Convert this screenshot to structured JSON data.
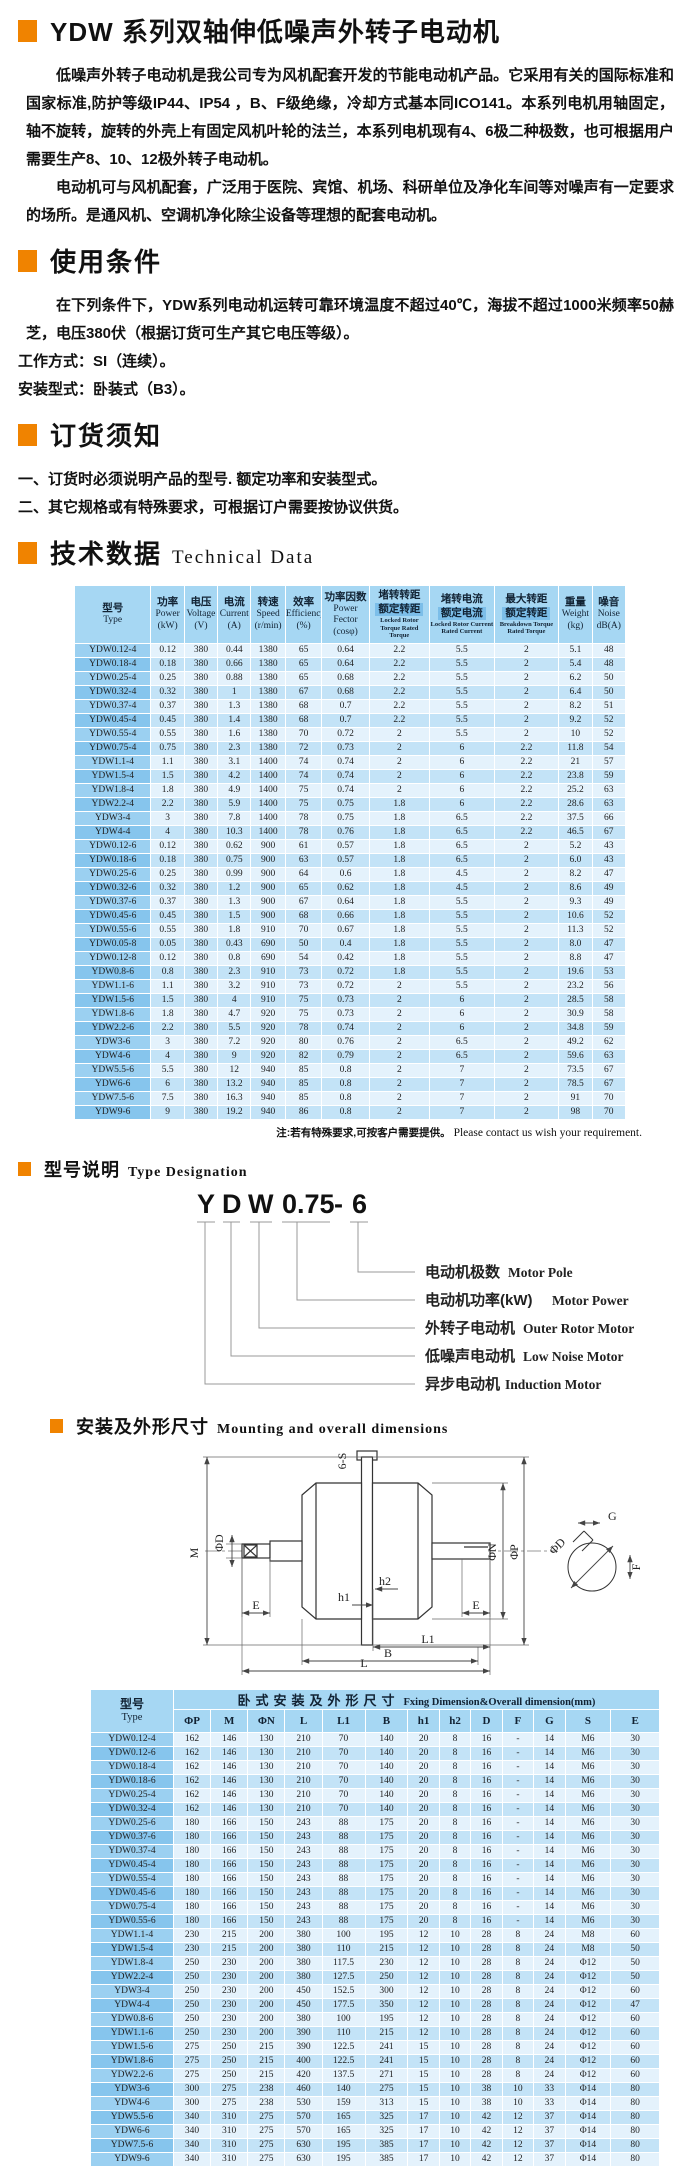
{
  "colors": {
    "accent_orange": "#F08300",
    "table_header_blue": "#A6D7F3",
    "type_column_blue": "#8FC9EE",
    "row_light_blue": "#E4F2FC",
    "row_medium_blue": "#C3E3F7",
    "highlight_chip_blue": "#7CBEE9"
  },
  "page": {
    "title": "YDW 系列双轴伸低噪声外转子电动机",
    "intro_p1": "低噪声外转子电动机是我公司专为风机配套开发的节能电动机产品。它采用有关的国际标准和国家标准,防护等级IP44、IP54 ，B、F级绝缘，冷却方式基本同ICO141。本系列电机用轴固定，轴不旋转，旋转的外壳上有固定风机叶轮的法兰，本系列电机现有4、6极二种极数，也可根据用户需要生产8、10、12极外转子电动机。",
    "intro_p2": "电动机可与风机配套，广泛用于医院、宾馆、机场、科研单位及净化车间等对噪声有一定要求的场所。是通风机、空调机净化除尘设备等理想的配套电动机。"
  },
  "sections": {
    "usage": {
      "heading": "使用条件",
      "p1": "在下列条件下，YDW系列电动机运转可靠环境温度不超过40℃，海拔不超过1000米频率50赫芝，电压380伏（根据订货可生产其它电压等级）。",
      "line2": "工作方式：SI（连续）。",
      "line3": "安装型式：卧装式（B3）。"
    },
    "ordering": {
      "heading": "订货须知",
      "item1": "一、订货时必须说明产品的型号. 额定功率和安装型式。",
      "item2": "二、其它规格或有特殊要求，可根据订户需要按协议供货。"
    },
    "technical": {
      "heading_cn": "技术数据",
      "heading_en": "Technical Data",
      "note_cn": "注:若有特殊要求,可按客户需要提供。",
      "note_en": "Please contact us wish your requirement."
    },
    "designation": {
      "heading_cn": "型号说明",
      "heading_en": "Type Designation",
      "code_parts": [
        "Y",
        "D",
        "W",
        "0.75",
        "-",
        "6"
      ],
      "labels": [
        {
          "cn": "电动机极数",
          "en": "Motor Pole"
        },
        {
          "cn": "电动机功率(kW)",
          "en": "Motor  Power"
        },
        {
          "cn": "外转子电动机",
          "en": "Outer Rotor Motor"
        },
        {
          "cn": "低噪声电动机",
          "en": "Low Noise Motor"
        },
        {
          "cn": "异步电动机",
          "en": "Induction Motor"
        }
      ]
    },
    "mounting": {
      "heading_cn": "安装及外形尺寸",
      "heading_en": "Mounting and overall dimensions",
      "drawing_labels": {
        "s6": "6-S",
        "m": "M",
        "phi_d": "ΦD",
        "e": "E",
        "phi_n": "ΦN",
        "phi_p": "ΦP",
        "g": "G",
        "f": "F",
        "h1": "h1",
        "h2": "h2",
        "l1": "L1",
        "b": "B",
        "l": "L"
      }
    }
  },
  "tech_table": {
    "headers": [
      {
        "cn": "型号",
        "en": "Type"
      },
      {
        "cn": "功率",
        "en": "Power",
        "unit": "(kW)"
      },
      {
        "cn": "电压",
        "en": "Voltage",
        "unit": "(V)"
      },
      {
        "cn": "电流",
        "en": "Current",
        "unit": "(A)"
      },
      {
        "cn": "转速",
        "en": "Speed",
        "unit": "(r/min)"
      },
      {
        "cn": "效率",
        "en": "Efficiency",
        "unit": "(%)"
      },
      {
        "cn": "功率因数",
        "en": "Power Fector",
        "unit": "(cosφ)"
      },
      {
        "cn": "堵转转距",
        "cn2": "额定转距",
        "small": "Locked Rotor Torque Rated Torque"
      },
      {
        "cn": "堵转电流",
        "cn2": "额定电流",
        "small": "Locked Rotor Current Rated Current"
      },
      {
        "cn": "最大转距",
        "cn2": "额定转距",
        "small": "Breakdown Torque Rated Torque"
      },
      {
        "cn": "重量",
        "en": "Weight",
        "unit": "(kg)"
      },
      {
        "cn": "噪音",
        "en": "Noise",
        "unit": "dB(A)"
      }
    ],
    "rows": [
      [
        "YDW0.12-4",
        "0.12",
        "380",
        "0.44",
        "1380",
        "65",
        "0.64",
        "2.2",
        "5.5",
        "2",
        "5.1",
        "48"
      ],
      [
        "YDW0.18-4",
        "0.18",
        "380",
        "0.66",
        "1380",
        "65",
        "0.64",
        "2.2",
        "5.5",
        "2",
        "5.4",
        "48"
      ],
      [
        "YDW0.25-4",
        "0.25",
        "380",
        "0.88",
        "1380",
        "65",
        "0.68",
        "2.2",
        "5.5",
        "2",
        "6.2",
        "50"
      ],
      [
        "YDW0.32-4",
        "0.32",
        "380",
        "1",
        "1380",
        "67",
        "0.68",
        "2.2",
        "5.5",
        "2",
        "6.4",
        "50"
      ],
      [
        "YDW0.37-4",
        "0.37",
        "380",
        "1.3",
        "1380",
        "68",
        "0.7",
        "2.2",
        "5.5",
        "2",
        "8.2",
        "51"
      ],
      [
        "YDW0.45-4",
        "0.45",
        "380",
        "1.4",
        "1380",
        "68",
        "0.7",
        "2.2",
        "5.5",
        "2",
        "9.2",
        "52"
      ],
      [
        "YDW0.55-4",
        "0.55",
        "380",
        "1.6",
        "1380",
        "70",
        "0.72",
        "2",
        "5.5",
        "2",
        "10",
        "52"
      ],
      [
        "YDW0.75-4",
        "0.75",
        "380",
        "2.3",
        "1380",
        "72",
        "0.73",
        "2",
        "6",
        "2.2",
        "11.8",
        "54"
      ],
      [
        "YDW1.1-4",
        "1.1",
        "380",
        "3.1",
        "1400",
        "74",
        "0.74",
        "2",
        "6",
        "2.2",
        "21",
        "57"
      ],
      [
        "YDW1.5-4",
        "1.5",
        "380",
        "4.2",
        "1400",
        "74",
        "0.74",
        "2",
        "6",
        "2.2",
        "23.8",
        "59"
      ],
      [
        "YDW1.8-4",
        "1.8",
        "380",
        "4.9",
        "1400",
        "75",
        "0.74",
        "2",
        "6",
        "2.2",
        "25.2",
        "63"
      ],
      [
        "YDW2.2-4",
        "2.2",
        "380",
        "5.9",
        "1400",
        "75",
        "0.75",
        "1.8",
        "6",
        "2.2",
        "28.6",
        "63"
      ],
      [
        "YDW3-4",
        "3",
        "380",
        "7.8",
        "1400",
        "78",
        "0.75",
        "1.8",
        "6.5",
        "2.2",
        "37.5",
        "66"
      ],
      [
        "YDW4-4",
        "4",
        "380",
        "10.3",
        "1400",
        "78",
        "0.76",
        "1.8",
        "6.5",
        "2.2",
        "46.5",
        "67"
      ],
      [
        "YDW0.12-6",
        "0.12",
        "380",
        "0.62",
        "900",
        "61",
        "0.57",
        "1.8",
        "6.5",
        "2",
        "5.2",
        "43"
      ],
      [
        "YDW0.18-6",
        "0.18",
        "380",
        "0.75",
        "900",
        "63",
        "0.57",
        "1.8",
        "6.5",
        "2",
        "6.0",
        "43"
      ],
      [
        "YDW0.25-6",
        "0.25",
        "380",
        "0.99",
        "900",
        "64",
        "0.6",
        "1.8",
        "4.5",
        "2",
        "8.2",
        "47"
      ],
      [
        "YDW0.32-6",
        "0.32",
        "380",
        "1.2",
        "900",
        "65",
        "0.62",
        "1.8",
        "4.5",
        "2",
        "8.6",
        "49"
      ],
      [
        "YDW0.37-6",
        "0.37",
        "380",
        "1.3",
        "900",
        "67",
        "0.64",
        "1.8",
        "5.5",
        "2",
        "9.3",
        "49"
      ],
      [
        "YDW0.45-6",
        "0.45",
        "380",
        "1.5",
        "900",
        "68",
        "0.66",
        "1.8",
        "5.5",
        "2",
        "10.6",
        "52"
      ],
      [
        "YDW0.55-6",
        "0.55",
        "380",
        "1.8",
        "910",
        "70",
        "0.67",
        "1.8",
        "5.5",
        "2",
        "11.3",
        "52"
      ],
      [
        "YDW0.05-8",
        "0.05",
        "380",
        "0.43",
        "690",
        "50",
        "0.4",
        "1.8",
        "5.5",
        "2",
        "8.0",
        "47"
      ],
      [
        "YDW0.12-8",
        "0.12",
        "380",
        "0.8",
        "690",
        "54",
        "0.42",
        "1.8",
        "5.5",
        "2",
        "8.8",
        "47"
      ],
      [
        "YDW0.8-6",
        "0.8",
        "380",
        "2.3",
        "910",
        "73",
        "0.72",
        "1.8",
        "5.5",
        "2",
        "19.6",
        "53"
      ],
      [
        "YDW1.1-6",
        "1.1",
        "380",
        "3.2",
        "910",
        "73",
        "0.72",
        "2",
        "5.5",
        "2",
        "23.2",
        "56"
      ],
      [
        "YDW1.5-6",
        "1.5",
        "380",
        "4",
        "910",
        "75",
        "0.73",
        "2",
        "6",
        "2",
        "28.5",
        "58"
      ],
      [
        "YDW1.8-6",
        "1.8",
        "380",
        "4.7",
        "920",
        "75",
        "0.73",
        "2",
        "6",
        "2",
        "30.9",
        "58"
      ],
      [
        "YDW2.2-6",
        "2.2",
        "380",
        "5.5",
        "920",
        "78",
        "0.74",
        "2",
        "6",
        "2",
        "34.8",
        "59"
      ],
      [
        "YDW3-6",
        "3",
        "380",
        "7.2",
        "920",
        "80",
        "0.76",
        "2",
        "6.5",
        "2",
        "49.2",
        "62"
      ],
      [
        "YDW4-6",
        "4",
        "380",
        "9",
        "920",
        "82",
        "0.79",
        "2",
        "6.5",
        "2",
        "59.6",
        "63"
      ],
      [
        "YDW5.5-6",
        "5.5",
        "380",
        "12",
        "940",
        "85",
        "0.8",
        "2",
        "7",
        "2",
        "73.5",
        "67"
      ],
      [
        "YDW6-6",
        "6",
        "380",
        "13.2",
        "940",
        "85",
        "0.8",
        "2",
        "7",
        "2",
        "78.5",
        "67"
      ],
      [
        "YDW7.5-6",
        "7.5",
        "380",
        "16.3",
        "940",
        "85",
        "0.8",
        "2",
        "7",
        "2",
        "91",
        "70"
      ],
      [
        "YDW9-6",
        "9",
        "380",
        "19.2",
        "940",
        "86",
        "0.8",
        "2",
        "7",
        "2",
        "98",
        "70"
      ]
    ]
  },
  "dim_table": {
    "type_cn": "型号",
    "type_en": "Type",
    "title_cn": "卧式安装及外形尺寸",
    "title_en": "Fxing Dimension&Overall dimension(mm)",
    "col_headers": [
      "ΦP",
      "M",
      "ΦN",
      "L",
      "L1",
      "B",
      "h1",
      "h2",
      "D",
      "F",
      "G",
      "S",
      "E"
    ],
    "rows": [
      [
        "YDW0.12-4",
        "162",
        "146",
        "130",
        "210",
        "70",
        "140",
        "20",
        "8",
        "16",
        "-",
        "14",
        "M6",
        "30"
      ],
      [
        "YDW0.12-6",
        "162",
        "146",
        "130",
        "210",
        "70",
        "140",
        "20",
        "8",
        "16",
        "-",
        "14",
        "M6",
        "30"
      ],
      [
        "YDW0.18-4",
        "162",
        "146",
        "130",
        "210",
        "70",
        "140",
        "20",
        "8",
        "16",
        "-",
        "14",
        "M6",
        "30"
      ],
      [
        "YDW0.18-6",
        "162",
        "146",
        "130",
        "210",
        "70",
        "140",
        "20",
        "8",
        "16",
        "-",
        "14",
        "M6",
        "30"
      ],
      [
        "YDW0.25-4",
        "162",
        "146",
        "130",
        "210",
        "70",
        "140",
        "20",
        "8",
        "16",
        "-",
        "14",
        "M6",
        "30"
      ],
      [
        "YDW0.32-4",
        "162",
        "146",
        "130",
        "210",
        "70",
        "140",
        "20",
        "8",
        "16",
        "-",
        "14",
        "M6",
        "30"
      ],
      [
        "YDW0.25-6",
        "180",
        "166",
        "150",
        "243",
        "88",
        "175",
        "20",
        "8",
        "16",
        "-",
        "14",
        "M6",
        "30"
      ],
      [
        "YDW0.37-6",
        "180",
        "166",
        "150",
        "243",
        "88",
        "175",
        "20",
        "8",
        "16",
        "-",
        "14",
        "M6",
        "30"
      ],
      [
        "YDW0.37-4",
        "180",
        "166",
        "150",
        "243",
        "88",
        "175",
        "20",
        "8",
        "16",
        "-",
        "14",
        "M6",
        "30"
      ],
      [
        "YDW0.45-4",
        "180",
        "166",
        "150",
        "243",
        "88",
        "175",
        "20",
        "8",
        "16",
        "-",
        "14",
        "M6",
        "30"
      ],
      [
        "YDW0.55-4",
        "180",
        "166",
        "150",
        "243",
        "88",
        "175",
        "20",
        "8",
        "16",
        "-",
        "14",
        "M6",
        "30"
      ],
      [
        "YDW0.45-6",
        "180",
        "166",
        "150",
        "243",
        "88",
        "175",
        "20",
        "8",
        "16",
        "-",
        "14",
        "M6",
        "30"
      ],
      [
        "YDW0.75-4",
        "180",
        "166",
        "150",
        "243",
        "88",
        "175",
        "20",
        "8",
        "16",
        "-",
        "14",
        "M6",
        "30"
      ],
      [
        "YDW0.55-6",
        "180",
        "166",
        "150",
        "243",
        "88",
        "175",
        "20",
        "8",
        "16",
        "-",
        "14",
        "M6",
        "30"
      ],
      [
        "YDW1.1-4",
        "230",
        "215",
        "200",
        "380",
        "100",
        "195",
        "12",
        "10",
        "28",
        "8",
        "24",
        "M8",
        "60"
      ],
      [
        "YDW1.5-4",
        "230",
        "215",
        "200",
        "380",
        "110",
        "215",
        "12",
        "10",
        "28",
        "8",
        "24",
        "M8",
        "50"
      ],
      [
        "YDW1.8-4",
        "250",
        "230",
        "200",
        "380",
        "117.5",
        "230",
        "12",
        "10",
        "28",
        "8",
        "24",
        "Φ12",
        "50"
      ],
      [
        "YDW2.2-4",
        "250",
        "230",
        "200",
        "380",
        "127.5",
        "250",
        "12",
        "10",
        "28",
        "8",
        "24",
        "Φ12",
        "50"
      ],
      [
        "YDW3-4",
        "250",
        "230",
        "200",
        "450",
        "152.5",
        "300",
        "12",
        "10",
        "28",
        "8",
        "24",
        "Φ12",
        "60"
      ],
      [
        "YDW4-4",
        "250",
        "230",
        "200",
        "450",
        "177.5",
        "350",
        "12",
        "10",
        "28",
        "8",
        "24",
        "Φ12",
        "47"
      ],
      [
        "YDW0.8-6",
        "250",
        "230",
        "200",
        "380",
        "100",
        "195",
        "12",
        "10",
        "28",
        "8",
        "24",
        "Φ12",
        "60"
      ],
      [
        "YDW1.1-6",
        "250",
        "230",
        "200",
        "390",
        "110",
        "215",
        "12",
        "10",
        "28",
        "8",
        "24",
        "Φ12",
        "60"
      ],
      [
        "YDW1.5-6",
        "275",
        "250",
        "215",
        "390",
        "122.5",
        "241",
        "15",
        "10",
        "28",
        "8",
        "24",
        "Φ12",
        "60"
      ],
      [
        "YDW1.8-6",
        "275",
        "250",
        "215",
        "400",
        "122.5",
        "241",
        "15",
        "10",
        "28",
        "8",
        "24",
        "Φ12",
        "60"
      ],
      [
        "YDW2.2-6",
        "275",
        "250",
        "215",
        "420",
        "137.5",
        "271",
        "15",
        "10",
        "28",
        "8",
        "24",
        "Φ12",
        "60"
      ],
      [
        "YDW3-6",
        "300",
        "275",
        "238",
        "460",
        "140",
        "275",
        "15",
        "10",
        "38",
        "10",
        "33",
        "Φ14",
        "80"
      ],
      [
        "YDW4-6",
        "300",
        "275",
        "238",
        "530",
        "159",
        "313",
        "15",
        "10",
        "38",
        "10",
        "33",
        "Φ14",
        "80"
      ],
      [
        "YDW5.5-6",
        "340",
        "310",
        "275",
        "570",
        "165",
        "325",
        "17",
        "10",
        "42",
        "12",
        "37",
        "Φ14",
        "80"
      ],
      [
        "YDW6-6",
        "340",
        "310",
        "275",
        "570",
        "165",
        "325",
        "17",
        "10",
        "42",
        "12",
        "37",
        "Φ14",
        "80"
      ],
      [
        "YDW7.5-6",
        "340",
        "310",
        "275",
        "630",
        "195",
        "385",
        "17",
        "10",
        "42",
        "12",
        "37",
        "Φ14",
        "80"
      ],
      [
        "YDW9-6",
        "340",
        "310",
        "275",
        "630",
        "195",
        "385",
        "17",
        "10",
        "42",
        "12",
        "37",
        "Φ14",
        "80"
      ]
    ]
  }
}
